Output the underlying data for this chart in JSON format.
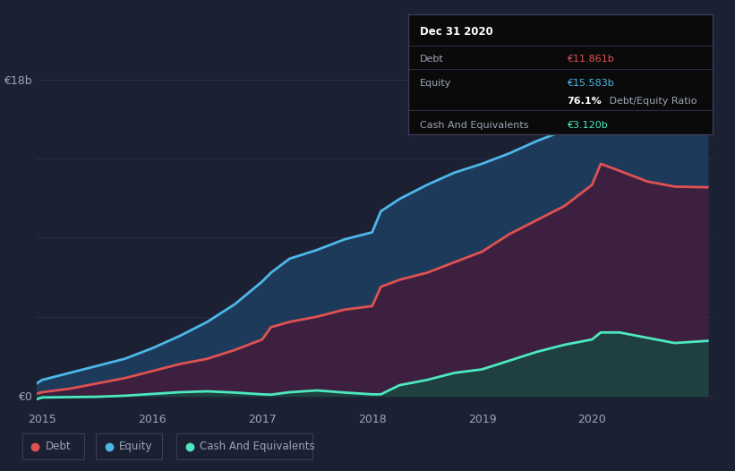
{
  "background_color": "#1c2033",
  "plot_bg_color": "#1c2033",
  "grid_color": "#2a2f4a",
  "text_color": "#9da5b4",
  "debt_color": "#e05252",
  "equity_color": "#4db8e8",
  "cash_color": "#4de8c0",
  "ylim_top": 18500000000,
  "ylim_bottom": -800000000,
  "y_label_18b": "€18b",
  "y_label_0": "€0",
  "x_ticks": [
    2015,
    2016,
    2017,
    2018,
    2019,
    2020
  ],
  "legend_items": [
    "Debt",
    "Equity",
    "Cash And Equivalents"
  ],
  "tooltip_title": "Dec 31 2020",
  "tooltip_debt_label": "Debt",
  "tooltip_debt_value": "€11.861b",
  "tooltip_equity_label": "Equity",
  "tooltip_equity_value": "€15.583b",
  "tooltip_ratio_bold": "76.1%",
  "tooltip_ratio_rest": " Debt/Equity Ratio",
  "tooltip_cash_label": "Cash And Equivalents",
  "tooltip_cash_value": "€3.120b",
  "years": [
    2014.95,
    2015.0,
    2015.25,
    2015.5,
    2015.75,
    2016.0,
    2016.25,
    2016.5,
    2016.75,
    2017.0,
    2017.08,
    2017.25,
    2017.5,
    2017.75,
    2018.0,
    2018.08,
    2018.25,
    2018.5,
    2018.75,
    2019.0,
    2019.25,
    2019.5,
    2019.75,
    2020.0,
    2020.08,
    2020.25,
    2020.5,
    2020.75,
    2021.05
  ],
  "debt": [
    120000000,
    200000000,
    400000000,
    700000000,
    1000000000,
    1400000000,
    1800000000,
    2100000000,
    2600000000,
    3200000000,
    3900000000,
    4200000000,
    4500000000,
    4900000000,
    5100000000,
    6200000000,
    6600000000,
    7000000000,
    7600000000,
    8200000000,
    9200000000,
    10000000000,
    10800000000,
    12000000000,
    13200000000,
    12800000000,
    12200000000,
    11900000000,
    11861000000
  ],
  "equity": [
    700000000,
    900000000,
    1300000000,
    1700000000,
    2100000000,
    2700000000,
    3400000000,
    4200000000,
    5200000000,
    6500000000,
    7000000000,
    7800000000,
    8300000000,
    8900000000,
    9300000000,
    10500000000,
    11200000000,
    12000000000,
    12700000000,
    13200000000,
    13800000000,
    14500000000,
    15100000000,
    16200000000,
    17800000000,
    18200000000,
    17200000000,
    16000000000,
    15583000000
  ],
  "cash": [
    -200000000,
    -100000000,
    -80000000,
    -60000000,
    0,
    100000000,
    200000000,
    250000000,
    180000000,
    80000000,
    60000000,
    200000000,
    300000000,
    180000000,
    80000000,
    80000000,
    600000000,
    900000000,
    1300000000,
    1500000000,
    2000000000,
    2500000000,
    2900000000,
    3200000000,
    3600000000,
    3600000000,
    3300000000,
    3000000000,
    3120000000
  ]
}
